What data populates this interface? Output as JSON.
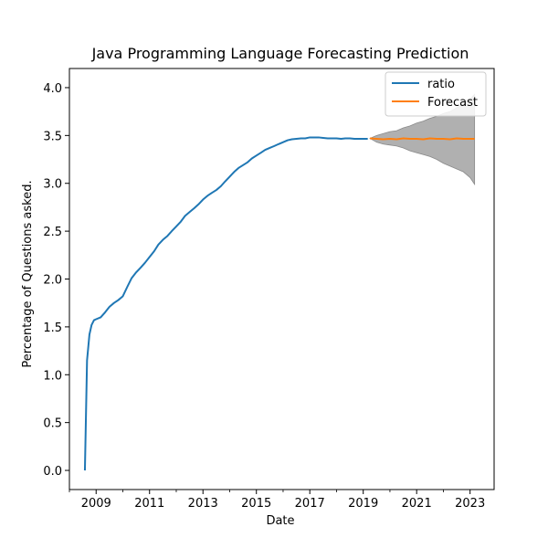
{
  "chart_data": {
    "type": "line",
    "title": "Java Programming Language Forecasting Prediction",
    "xlabel": "Date",
    "ylabel": "Percentage of Questions asked.",
    "xlim": [
      2008.0,
      2023.9
    ],
    "ylim": [
      -0.2,
      4.2
    ],
    "x_ticks": [
      2009,
      2011,
      2013,
      2015,
      2017,
      2019,
      2021,
      2023
    ],
    "x_minor_ticks": [
      2008,
      2010,
      2012,
      2014,
      2016,
      2018,
      2020,
      2022
    ],
    "x_tick_labels": [
      "2009",
      "2011",
      "2013",
      "2015",
      "2017",
      "2019",
      "2021",
      "2023"
    ],
    "y_ticks": [
      0.0,
      0.5,
      1.0,
      1.5,
      2.0,
      2.5,
      3.0,
      3.5,
      4.0
    ],
    "y_tick_labels": [
      "0.0",
      "0.5",
      "1.0",
      "1.5",
      "2.0",
      "2.5",
      "3.0",
      "3.5",
      "4.0"
    ],
    "grid": false,
    "legend_position": "top-right",
    "series": [
      {
        "name": "ratio",
        "color": "#1f77b4",
        "x": [
          2008.58,
          2008.66,
          2008.75,
          2008.83,
          2008.92,
          2009.0,
          2009.17,
          2009.33,
          2009.5,
          2009.67,
          2009.83,
          2010.0,
          2010.17,
          2010.33,
          2010.5,
          2010.67,
          2010.83,
          2011.0,
          2011.17,
          2011.33,
          2011.5,
          2011.67,
          2011.83,
          2012.0,
          2012.17,
          2012.33,
          2012.5,
          2012.67,
          2012.83,
          2013.0,
          2013.17,
          2013.33,
          2013.5,
          2013.67,
          2013.83,
          2014.0,
          2014.17,
          2014.33,
          2014.5,
          2014.67,
          2014.83,
          2015.0,
          2015.17,
          2015.33,
          2015.5,
          2015.67,
          2015.83,
          2016.0,
          2016.17,
          2016.33,
          2016.5,
          2016.67,
          2016.83,
          2017.0,
          2017.17,
          2017.33,
          2017.5,
          2017.67,
          2017.83,
          2018.0,
          2018.17,
          2018.33,
          2018.5,
          2018.67,
          2018.83,
          2019.0,
          2019.17
        ],
        "y": [
          0.0,
          1.15,
          1.42,
          1.52,
          1.57,
          1.58,
          1.6,
          1.65,
          1.71,
          1.75,
          1.78,
          1.82,
          1.92,
          2.01,
          2.07,
          2.12,
          2.17,
          2.23,
          2.29,
          2.36,
          2.41,
          2.45,
          2.5,
          2.55,
          2.6,
          2.66,
          2.7,
          2.74,
          2.78,
          2.83,
          2.87,
          2.9,
          2.93,
          2.97,
          3.02,
          3.07,
          3.12,
          3.16,
          3.19,
          3.22,
          3.26,
          3.29,
          3.32,
          3.35,
          3.37,
          3.39,
          3.41,
          3.43,
          3.45,
          3.46,
          3.465,
          3.47,
          3.47,
          3.48,
          3.48,
          3.48,
          3.475,
          3.47,
          3.47,
          3.47,
          3.465,
          3.47,
          3.47,
          3.465,
          3.465,
          3.465,
          3.465
        ]
      },
      {
        "name": "Forecast",
        "color": "#ff7f0e",
        "x": [
          2019.25,
          2019.5,
          2019.75,
          2020.0,
          2020.25,
          2020.5,
          2020.75,
          2021.0,
          2021.25,
          2021.5,
          2021.75,
          2022.0,
          2022.25,
          2022.5,
          2022.75,
          2023.0,
          2023.17
        ],
        "y": [
          3.47,
          3.465,
          3.46,
          3.465,
          3.46,
          3.47,
          3.465,
          3.465,
          3.46,
          3.47,
          3.465,
          3.465,
          3.46,
          3.47,
          3.465,
          3.465,
          3.465
        ]
      }
    ],
    "confidence_band": {
      "color": "#b0b0b0",
      "x": [
        2019.25,
        2019.5,
        2019.75,
        2020.0,
        2020.25,
        2020.5,
        2020.75,
        2021.0,
        2021.25,
        2021.5,
        2021.75,
        2022.0,
        2022.25,
        2022.5,
        2022.75,
        2023.0,
        2023.17
      ],
      "upper": [
        3.47,
        3.5,
        3.52,
        3.54,
        3.55,
        3.58,
        3.6,
        3.63,
        3.65,
        3.68,
        3.7,
        3.73,
        3.75,
        3.79,
        3.83,
        3.88,
        3.93
      ],
      "lower": [
        3.47,
        3.43,
        3.41,
        3.4,
        3.39,
        3.37,
        3.34,
        3.32,
        3.3,
        3.28,
        3.25,
        3.21,
        3.18,
        3.15,
        3.12,
        3.06,
        2.99
      ]
    }
  }
}
